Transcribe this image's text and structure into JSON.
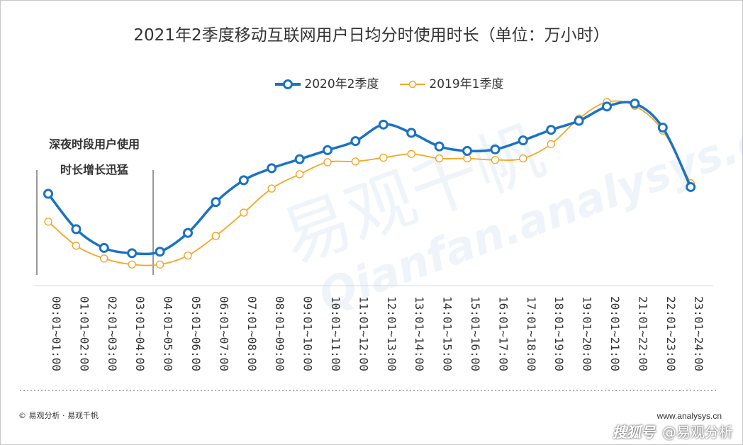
{
  "chart_data": {
    "type": "line",
    "title": "2021年2季度移动互联网用户日均分时使用时长（单位：万小时）",
    "categories": [
      "00:01~01:00",
      "01:01~02:00",
      "02:01~03:00",
      "03:01~04:00",
      "04:01~05:00",
      "05:01~06:00",
      "06:01~07:00",
      "07:01~08:00",
      "08:01~09:00",
      "09:01~10:00",
      "10:01~11:00",
      "11:01~12:00",
      "12:01~13:00",
      "13:01~14:00",
      "14:01~15:00",
      "15:01~16:00",
      "16:01~17:00",
      "17:01~18:00",
      "18:01~19:00",
      "19:01~20:00",
      "20:01~21:00",
      "21:01~22:00",
      "22:01~23:00",
      "23:01~24:00"
    ],
    "series": [
      {
        "name": "2020年2季度",
        "color": "#1a72c3",
        "values": [
          122,
          75,
          50,
          43,
          45,
          70,
          111,
          140,
          156,
          168,
          180,
          192,
          214,
          203,
          185,
          179,
          181,
          193,
          207,
          219,
          238,
          242,
          210,
          131
        ]
      },
      {
        "name": "2019年1季度",
        "color": "#f5a623",
        "values": [
          85,
          53,
          36,
          28,
          28,
          40,
          66,
          97,
          129,
          148,
          164,
          165,
          170,
          175,
          169,
          169,
          167,
          169,
          188,
          222,
          244,
          239,
          206,
          136
        ]
      }
    ],
    "ylim": [
      0,
      260
    ],
    "grid": false,
    "legend": "top-center",
    "annotation": {
      "line1": "深夜时段用户使用",
      "line2": "时长增长迅猛"
    }
  },
  "footer": {
    "copyright": "© 易观分析 · 易观千帆",
    "website": "www.analysys.cn",
    "brand_a": "搜狐号",
    "brand_b": "@易观分析"
  },
  "watermark": {
    "cn": "易观千帆",
    "en": "Qianfan.analysys.cn"
  }
}
